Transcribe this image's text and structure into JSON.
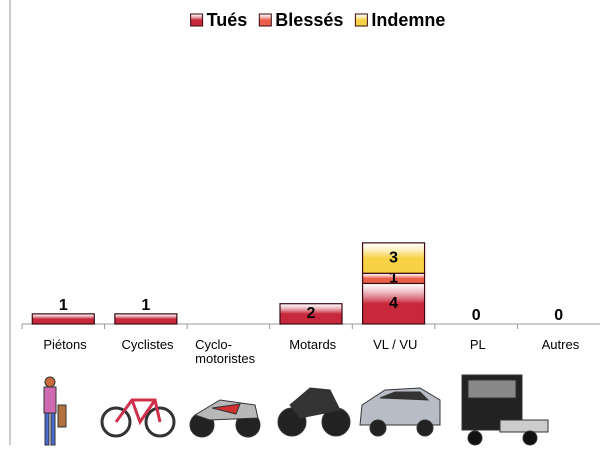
{
  "chart_data": {
    "type": "stacked_bar",
    "categories": [
      "Piétons",
      "Cyclistes",
      "Cyclo-\nmotoristes",
      "Motards",
      "VL / VU",
      "PL",
      "Autres"
    ],
    "series": [
      {
        "name": "Tués",
        "color": "#c8283c",
        "values": [
          1,
          1,
          null,
          2,
          4,
          0,
          0
        ]
      },
      {
        "name": "Blessés",
        "color": "#ea5e4a",
        "values": [
          null,
          null,
          null,
          null,
          1,
          null,
          null
        ]
      },
      {
        "name": "Indemne",
        "color": "#f6d244",
        "values": [
          null,
          null,
          null,
          null,
          3,
          null,
          null
        ]
      }
    ],
    "ylim": [
      0,
      28
    ],
    "legend": "top"
  }
}
